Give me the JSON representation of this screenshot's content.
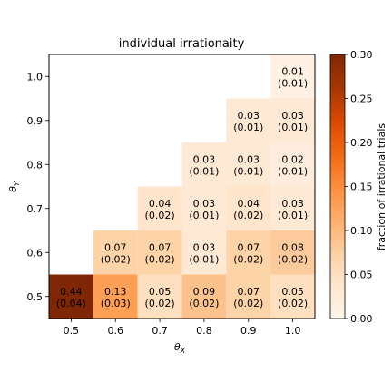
{
  "chart_data": {
    "type": "heatmap",
    "title": "individual irrationaity",
    "xlabel": "θ",
    "xlabel_sub": "X",
    "ylabel": "θ",
    "ylabel_sub": "Y",
    "x_ticks": [
      "0.5",
      "0.6",
      "0.7",
      "0.8",
      "0.9",
      "1.0"
    ],
    "y_ticks": [
      "0.5",
      "0.6",
      "0.7",
      "0.8",
      "0.9",
      "1.0"
    ],
    "colorbar": {
      "label": "fraction of irrational trials",
      "min": 0.0,
      "max": 0.3,
      "ticks": [
        "0.00",
        "0.05",
        "0.10",
        "0.15",
        "0.20",
        "0.25",
        "0.30"
      ],
      "colormap": "Oranges"
    },
    "cells": [
      {
        "x": "0.5",
        "y": "0.5",
        "value": 0.44,
        "label": "0.44",
        "sub": "(0.04)"
      },
      {
        "x": "0.6",
        "y": "0.5",
        "value": 0.13,
        "label": "0.13",
        "sub": "(0.03)"
      },
      {
        "x": "0.7",
        "y": "0.5",
        "value": 0.05,
        "label": "0.05",
        "sub": "(0.02)"
      },
      {
        "x": "0.8",
        "y": "0.5",
        "value": 0.09,
        "label": "0.09",
        "sub": "(0.02)"
      },
      {
        "x": "0.9",
        "y": "0.5",
        "value": 0.07,
        "label": "0.07",
        "sub": "(0.02)"
      },
      {
        "x": "1.0",
        "y": "0.5",
        "value": 0.05,
        "label": "0.05",
        "sub": "(0.02)"
      },
      {
        "x": "0.6",
        "y": "0.6",
        "value": 0.07,
        "label": "0.07",
        "sub": "(0.02)"
      },
      {
        "x": "0.7",
        "y": "0.6",
        "value": 0.07,
        "label": "0.07",
        "sub": "(0.02)"
      },
      {
        "x": "0.8",
        "y": "0.6",
        "value": 0.03,
        "label": "0.03",
        "sub": "(0.01)"
      },
      {
        "x": "0.9",
        "y": "0.6",
        "value": 0.07,
        "label": "0.07",
        "sub": "(0.02)"
      },
      {
        "x": "1.0",
        "y": "0.6",
        "value": 0.08,
        "label": "0.08",
        "sub": "(0.02)"
      },
      {
        "x": "0.7",
        "y": "0.7",
        "value": 0.04,
        "label": "0.04",
        "sub": "(0.02)"
      },
      {
        "x": "0.8",
        "y": "0.7",
        "value": 0.03,
        "label": "0.03",
        "sub": "(0.01)"
      },
      {
        "x": "0.9",
        "y": "0.7",
        "value": 0.04,
        "label": "0.04",
        "sub": "(0.02)"
      },
      {
        "x": "1.0",
        "y": "0.7",
        "value": 0.03,
        "label": "0.03",
        "sub": "(0.01)"
      },
      {
        "x": "0.8",
        "y": "0.8",
        "value": 0.03,
        "label": "0.03",
        "sub": "(0.01)"
      },
      {
        "x": "0.9",
        "y": "0.8",
        "value": 0.03,
        "label": "0.03",
        "sub": "(0.01)"
      },
      {
        "x": "1.0",
        "y": "0.8",
        "value": 0.02,
        "label": "0.02",
        "sub": "(0.01)"
      },
      {
        "x": "0.9",
        "y": "0.9",
        "value": 0.03,
        "label": "0.03",
        "sub": "(0.01)"
      },
      {
        "x": "1.0",
        "y": "0.9",
        "value": 0.03,
        "label": "0.03",
        "sub": "(0.01)"
      },
      {
        "x": "1.0",
        "y": "1.0",
        "value": 0.01,
        "label": "0.01",
        "sub": "(0.01)"
      }
    ]
  }
}
